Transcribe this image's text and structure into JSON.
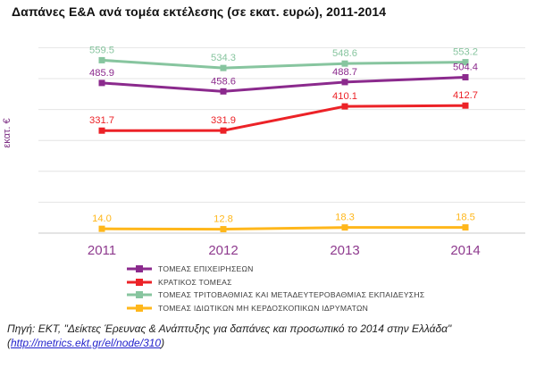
{
  "chart_data": {
    "type": "line",
    "title": "Δαπάνες Ε&Α ανά τομέα εκτέλεσης (σε εκατ. ευρώ), 2011-2014",
    "ylabel": "εκατ. €",
    "xlabel": "",
    "categories": [
      "2011",
      "2012",
      "2013",
      "2014"
    ],
    "ylim": [
      0,
      640
    ],
    "grid": true,
    "grid_step": 100,
    "legend_position": "bottom-left",
    "tick_color": "#8E3A8E",
    "series": [
      {
        "name": "ΤΟΜΕΑΣ ΕΠΙΧΕΙΡΗΣΕΩΝ",
        "color": "#8B2A8D",
        "values": [
          485.9,
          458.6,
          488.7,
          504.4
        ]
      },
      {
        "name": "ΚΡΑΤΙΚΟΣ ΤΟΜΕΑΣ",
        "color": "#EC2227",
        "values": [
          331.7,
          331.9,
          410.1,
          412.7
        ]
      },
      {
        "name": "ΤΟΜΕΑΣ ΤΡΙΤΟΒΑΘΜΙΑΣ ΚΑΙ ΜΕΤΑΔΕΥΤΕΡΟΒΑΘΜΙΑΣ ΕΚΠΑΙΔΕΥΣΗΣ",
        "color": "#87C59F",
        "values": [
          559.5,
          534.3,
          548.6,
          553.2
        ]
      },
      {
        "name": "ΤΟΜΕΑΣ ΙΔΙΩΤΙΚΩΝ ΜΗ ΚΕΡΔΟΣΚΟΠΙΚΩΝ ΙΔΡΥΜΑΤΩΝ",
        "color": "#FFB71B",
        "values": [
          14.0,
          12.8,
          18.3,
          18.5
        ]
      }
    ]
  },
  "source": {
    "text": "Πηγή: ΕΚΤ, \"Δείκτες Έρευνας & Ανάπτυξης για δαπάνες και προσωπικό το 2014 στην Ελλάδα\"",
    "paren_open": "(",
    "url": "http://metrics.ekt.gr/el/node/310",
    "paren_close": ")"
  },
  "colors": {
    "grid": "#E4E4E4",
    "axis": "#C9C9C9",
    "legend_text": "#3C3C3C",
    "link": "#2323CC",
    "title_text": "#111111"
  }
}
